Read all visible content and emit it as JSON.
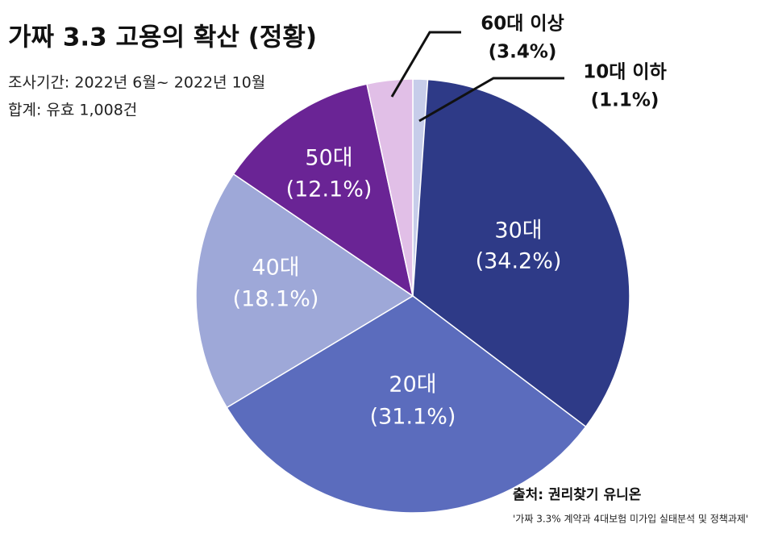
{
  "chart_data": {
    "type": "pie",
    "title": "가짜 3.3 고용의 확산 (정황)",
    "subtitle": [
      "조사기간: 2022년 6월~ 2022년 10월",
      "합계: 유효 1,008건"
    ],
    "source": "출처: 권리찾기 유니온",
    "note": "'가짜 3.3% 계약과 4대보험 미가입 실태분석 및 정책과제'",
    "categories": [
      "10대 이하",
      "30대",
      "20대",
      "40대",
      "50대",
      "60대 이상"
    ],
    "values": [
      1.1,
      34.2,
      31.1,
      18.1,
      12.1,
      3.4
    ],
    "value_labels": [
      "(1.1%)",
      "(34.2%)",
      "(31.1%)",
      "(18.1%)",
      "(12.1%)",
      "(3.4%)"
    ],
    "colors": [
      "#c7cdea",
      "#2e3a87",
      "#5b6cbd",
      "#9ea8d8",
      "#6a2495",
      "#e1bfe7"
    ]
  }
}
